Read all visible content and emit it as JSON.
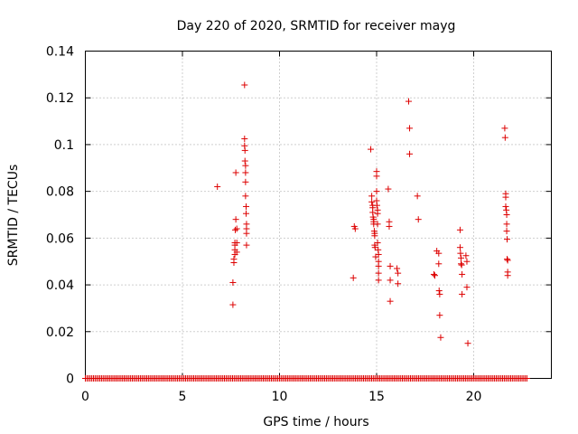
{
  "colors": {
    "series": "#dd0000",
    "axis": "#000000",
    "grid": "#a0a0a0"
  },
  "chart_data": {
    "type": "scatter",
    "title": "Day 220 of 2020, SRMTID for receiver mayg",
    "xlabel": "GPS time / hours",
    "ylabel": "SRMTID / TECUs",
    "xlim": [
      0,
      24
    ],
    "ylim": [
      0,
      0.14
    ],
    "xticks": [
      0,
      5,
      10,
      15,
      20
    ],
    "xtick_labels": [
      "0",
      "5",
      "10",
      "15",
      "20"
    ],
    "yticks": [
      0,
      0.02,
      0.04,
      0.06,
      0.08,
      0.1,
      0.12,
      0.14
    ],
    "ytick_labels": [
      "0",
      "0.02",
      "0.04",
      "0.06",
      "0.08",
      "0.1",
      "0.12",
      "0.14"
    ],
    "grid": true,
    "marker": "+",
    "baseline": {
      "y": 0,
      "x_start": 0,
      "x_end": 22.8,
      "step": 0.0833
    },
    "series": [
      {
        "name": "SRMTID",
        "x": [
          6.8,
          7.6,
          7.6,
          7.65,
          7.65,
          7.7,
          7.7,
          7.7,
          7.7,
          7.72,
          7.75,
          7.75,
          7.8,
          7.8,
          7.8,
          8.2,
          8.2,
          8.2,
          8.22,
          8.22,
          8.25,
          8.25,
          8.25,
          8.25,
          8.28,
          8.28,
          8.3,
          8.3,
          8.3,
          8.3,
          13.8,
          13.85,
          13.9,
          14.7,
          14.75,
          14.75,
          14.8,
          14.8,
          14.8,
          14.82,
          14.85,
          14.85,
          14.85,
          14.88,
          14.9,
          14.9,
          14.9,
          14.92,
          14.95,
          15.0,
          15.0,
          15.0,
          15.0,
          15.02,
          15.05,
          15.05,
          15.05,
          15.05,
          15.08,
          15.1,
          15.1,
          15.1,
          15.1,
          15.1,
          15.6,
          15.65,
          15.65,
          15.7,
          15.7,
          15.7,
          16.05,
          16.1,
          16.1,
          16.65,
          16.7,
          16.7,
          17.1,
          17.15,
          17.95,
          18.0,
          18.1,
          18.2,
          18.2,
          18.22,
          18.25,
          18.25,
          18.3,
          19.3,
          19.3,
          19.32,
          19.35,
          19.35,
          19.38,
          19.4,
          19.4,
          19.6,
          19.65,
          19.65,
          19.7,
          21.6,
          21.62,
          21.65,
          21.65,
          21.65,
          21.68,
          21.7,
          21.7,
          21.7,
          21.72,
          21.72,
          21.75,
          21.75,
          21.75
        ],
        "y": [
          0.082,
          0.0315,
          0.041,
          0.0495,
          0.051,
          0.053,
          0.055,
          0.057,
          0.058,
          0.0635,
          0.068,
          0.088,
          0.064,
          0.058,
          0.054,
          0.1255,
          0.1025,
          0.0995,
          0.0975,
          0.093,
          0.091,
          0.088,
          0.084,
          0.078,
          0.0735,
          0.0705,
          0.066,
          0.064,
          0.062,
          0.057,
          0.043,
          0.065,
          0.064,
          0.098,
          0.078,
          0.0755,
          0.074,
          0.073,
          0.071,
          0.069,
          0.068,
          0.067,
          0.066,
          0.063,
          0.062,
          0.061,
          0.057,
          0.056,
          0.052,
          0.0885,
          0.0865,
          0.08,
          0.076,
          0.074,
          0.072,
          0.0705,
          0.066,
          0.058,
          0.055,
          0.053,
          0.05,
          0.048,
          0.045,
          0.042,
          0.081,
          0.067,
          0.065,
          0.048,
          0.042,
          0.033,
          0.047,
          0.045,
          0.0405,
          0.1185,
          0.107,
          0.096,
          0.078,
          0.068,
          0.0445,
          0.044,
          0.0545,
          0.0535,
          0.049,
          0.0375,
          0.036,
          0.027,
          0.0175,
          0.0635,
          0.056,
          0.0535,
          0.0515,
          0.049,
          0.0485,
          0.0445,
          0.036,
          0.0525,
          0.05,
          0.039,
          0.015,
          0.107,
          0.103,
          0.079,
          0.0775,
          0.0735,
          0.072,
          0.07,
          0.066,
          0.063,
          0.0595,
          0.051,
          0.0505,
          0.0455,
          0.044
        ]
      }
    ]
  }
}
